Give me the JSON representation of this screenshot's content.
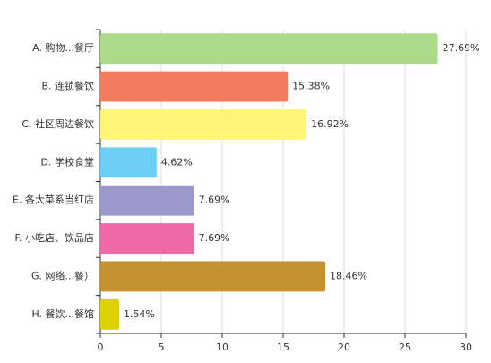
{
  "chart_data": {
    "type": "bar",
    "orientation": "horizontal",
    "categories": [
      "A. 购物...餐厅",
      "B. 连锁餐饮",
      "C. 社区周边餐饮",
      "D. 学校食堂",
      "E. 各大菜系当红店",
      "F. 小吃店、饮品店",
      "G. 网络...餐）",
      "H. 餐饮...餐馆"
    ],
    "values": [
      27.69,
      15.38,
      16.92,
      4.62,
      7.69,
      7.69,
      18.46,
      1.54
    ],
    "value_labels": [
      "27.69%",
      "15.38%",
      "16.92%",
      "4.62%",
      "7.69%",
      "7.69%",
      "18.46%",
      "1.54%"
    ],
    "colors": [
      "#acd98a",
      "#f47c5e",
      "#fef57a",
      "#6bcff5",
      "#9b98ca",
      "#ef6aa8",
      "#c5912f",
      "#ddd003"
    ],
    "xlim": [
      0,
      30
    ],
    "xticks": [
      0,
      5,
      10,
      15,
      20,
      25,
      30
    ],
    "grid": true
  }
}
